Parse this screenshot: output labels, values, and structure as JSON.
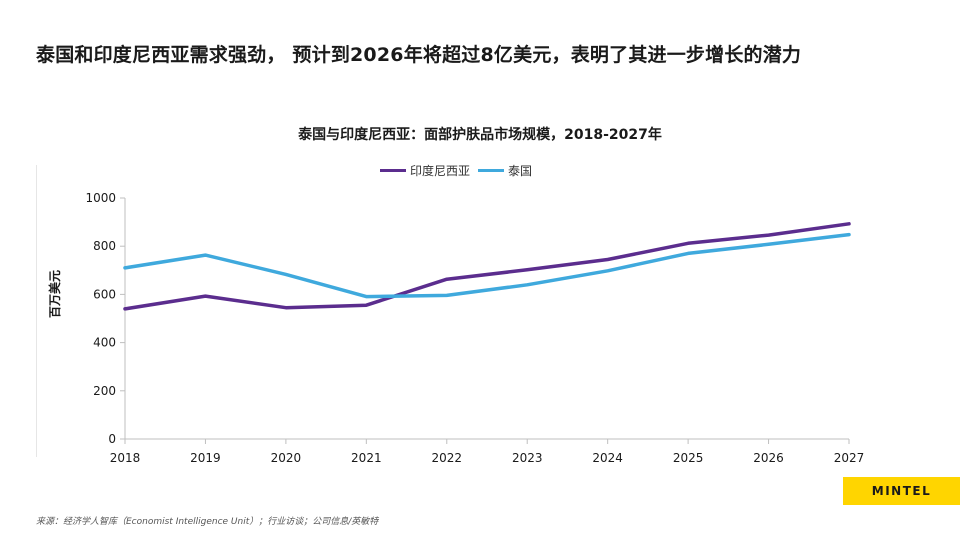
{
  "headline": "泰国和印度尼西亚需求强劲， 预计到2026年将超过8亿美元，表明了其进一步增长的潜力",
  "source": "来源：经济学人智库（Economist Intelligence Unit）；行业访谈；公司信息/英敏特",
  "logo_text": "MINTEL",
  "chart_data": {
    "type": "line",
    "title": "泰国与印度尼西亚：面部护肤品市场规模，2018-2027年",
    "xlabel": "",
    "ylabel": "百万美元",
    "x": [
      "2018",
      "2019",
      "2020",
      "2021",
      "2022",
      "2023",
      "2024",
      "2025",
      "2026",
      "2027"
    ],
    "ylim": [
      0,
      1000
    ],
    "yticks": [
      0,
      200,
      400,
      600,
      800,
      1000
    ],
    "grid": false,
    "legend_position": "top-center",
    "series": [
      {
        "name": "印度尼西亚",
        "color": "#5b2d8e",
        "values": [
          540,
          593,
          545,
          555,
          663,
          702,
          745,
          812,
          846,
          893
        ]
      },
      {
        "name": "泰国",
        "color": "#3fa9dd",
        "values": [
          710,
          763,
          683,
          591,
          596,
          640,
          698,
          770,
          808,
          848
        ]
      }
    ]
  }
}
